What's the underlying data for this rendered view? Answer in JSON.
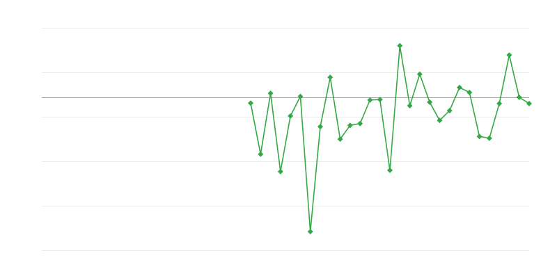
{
  "chart_data": {
    "type": "line",
    "title": "",
    "xlabel": "",
    "ylabel": "",
    "x_count": 50,
    "first_index": 21,
    "values": [
      -0.13,
      -1.28,
      0.09,
      -1.67,
      -0.42,
      0.02,
      -3.02,
      -0.66,
      0.45,
      -0.94,
      -0.63,
      -0.59,
      -0.06,
      -0.05,
      -1.64,
      1.16,
      -0.19,
      0.52,
      -0.11,
      -0.52,
      -0.3,
      0.22,
      0.11,
      -0.88,
      -0.92,
      -0.14,
      0.95,
      0.0,
      -0.14
    ],
    "ylim": [
      -3.4375,
      1.5625
    ],
    "baseline": 0,
    "grid": true,
    "marker": "diamond",
    "colors": {
      "series": "#34a845",
      "grid": "#ebebeb",
      "baseline": "#aaaaaa"
    }
  }
}
